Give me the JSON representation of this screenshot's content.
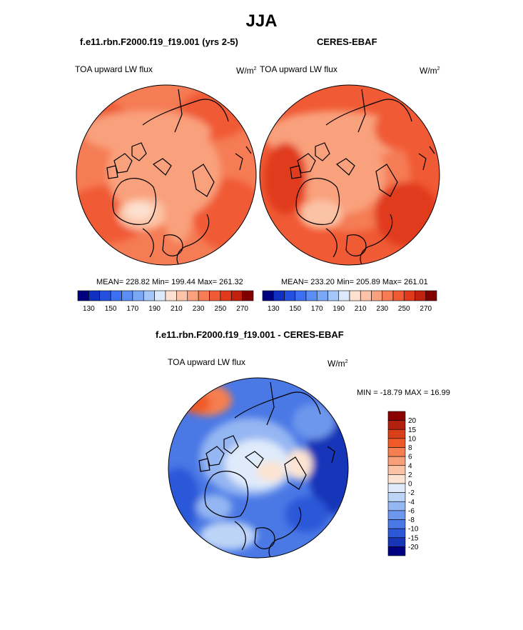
{
  "figure": {
    "title": "JJA"
  },
  "panels": {
    "model": {
      "title": "f.e11.rbn.F2000.f19_f19.001 (yrs 2-5)",
      "variable": "TOA upward LW flux",
      "units": "W/m",
      "units_sup": "2",
      "stats": "MEAN= 228.82  Min= 199.44  Max= 261.32"
    },
    "obs": {
      "title": "CERES-EBAF",
      "variable": "TOA upward LW flux",
      "units": "W/m",
      "units_sup": "2",
      "stats": "MEAN= 233.20  Min= 205.89  Max= 261.01"
    },
    "diff": {
      "title": "f.e11.rbn.F2000.f19_f19.001 - CERES-EBAF",
      "variable": "TOA upward LW flux",
      "units": "W/m",
      "units_sup": "2",
      "stats": "MIN = -18.79 MAX =  16.99"
    }
  },
  "chart_data": [
    {
      "type": "heatmap",
      "projection": "north polar stereographic",
      "title": "f.e11.rbn.F2000.f19_f19.001 (yrs 2-5)",
      "variable": "TOA upward LW flux",
      "units": "W/m^2",
      "mean": 228.82,
      "min": 199.44,
      "max": 261.32,
      "colorbar": {
        "ticks": [
          "130",
          "150",
          "170",
          "190",
          "210",
          "230",
          "250",
          "270"
        ],
        "colors": [
          "#00007f",
          "#0f30c0",
          "#2450e0",
          "#3d6ff2",
          "#5b8ef5",
          "#7aa8f7",
          "#a5c6f9",
          "#dbe9fb",
          "#fde0d0",
          "#fcc3a8",
          "#f9a07c",
          "#f57c55",
          "#f05a34",
          "#e03a1a",
          "#c0200e",
          "#800000"
        ]
      }
    },
    {
      "type": "heatmap",
      "projection": "north polar stereographic",
      "title": "CERES-EBAF",
      "variable": "TOA upward LW flux",
      "units": "W/m^2",
      "mean": 233.2,
      "min": 205.89,
      "max": 261.01,
      "colorbar": {
        "ticks": [
          "130",
          "150",
          "170",
          "190",
          "210",
          "230",
          "250",
          "270"
        ],
        "colors": [
          "#00007f",
          "#0f30c0",
          "#2450e0",
          "#3d6ff2",
          "#5b8ef5",
          "#7aa8f7",
          "#a5c6f9",
          "#dbe9fb",
          "#fde0d0",
          "#fcc3a8",
          "#f9a07c",
          "#f57c55",
          "#f05a34",
          "#e03a1a",
          "#c0200e",
          "#800000"
        ]
      }
    },
    {
      "type": "heatmap",
      "projection": "north polar stereographic",
      "title": "f.e11.rbn.F2000.f19_f19.001 - CERES-EBAF",
      "variable": "TOA upward LW flux",
      "units": "W/m^2",
      "min": -18.79,
      "max": 16.99,
      "colorbar": {
        "orientation": "vertical",
        "ticks": [
          "20",
          "15",
          "10",
          "8",
          "6",
          "4",
          "2",
          "0",
          "-2",
          "-4",
          "-6",
          "-8",
          "-10",
          "-15",
          "-20"
        ],
        "colors": [
          "#8b0000",
          "#b22010",
          "#d8401a",
          "#ef5a28",
          "#f57f50",
          "#f8a07a",
          "#fbc3a5",
          "#fde4d2",
          "#dfebfb",
          "#bdd4f7",
          "#94b6f2",
          "#6d97ec",
          "#4a78e5",
          "#2c58d8",
          "#1835b8",
          "#000080"
        ]
      }
    }
  ]
}
